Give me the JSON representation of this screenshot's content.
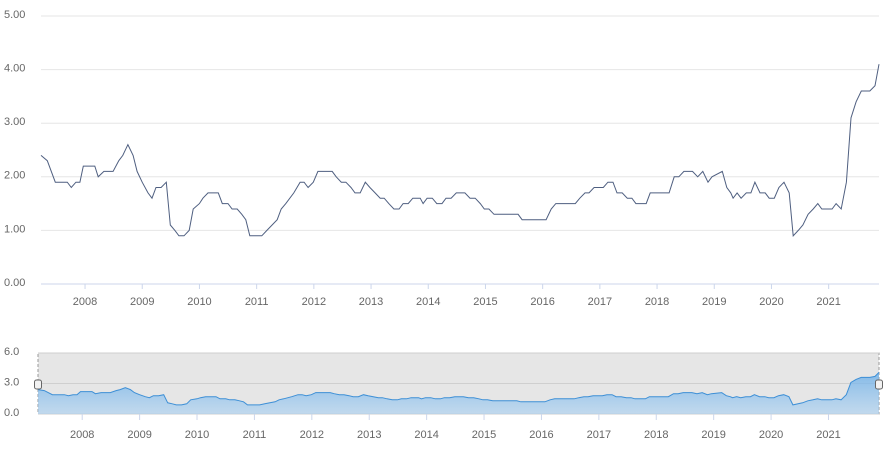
{
  "chart_data": {
    "type": "line",
    "color": "#4f5f80",
    "xlim": [
      2007.23,
      2021.88
    ],
    "xticks": [
      2008,
      2009,
      2010,
      2011,
      2012,
      2013,
      2014,
      2015,
      2016,
      2017,
      2018,
      2019,
      2020,
      2021
    ],
    "ylim": [
      0,
      5
    ],
    "yticks": [
      {
        "value": 0,
        "label": "0.00"
      },
      {
        "value": 1,
        "label": "1.00"
      },
      {
        "value": 2,
        "label": "2.00"
      },
      {
        "value": 3,
        "label": "3.00"
      },
      {
        "value": 4,
        "label": "4.00"
      },
      {
        "value": 5,
        "label": "5.00"
      }
    ],
    "grid": true,
    "x": [
      2007.23,
      2007.34,
      2007.48,
      2007.69,
      2007.76,
      2007.84,
      2007.91,
      2007.97,
      2008.17,
      2008.23,
      2008.33,
      2008.49,
      2008.59,
      2008.66,
      2008.75,
      2008.84,
      2008.91,
      2009.0,
      2009.1,
      2009.17,
      2009.24,
      2009.33,
      2009.42,
      2009.49,
      2009.57,
      2009.64,
      2009.73,
      2009.82,
      2009.89,
      2010.0,
      2010.06,
      2010.15,
      2010.33,
      2010.4,
      2010.5,
      2010.57,
      2010.66,
      2010.74,
      2010.81,
      2010.88,
      2011.09,
      2011.18,
      2011.27,
      2011.36,
      2011.43,
      2011.51,
      2011.65,
      2011.76,
      2011.83,
      2011.9,
      2011.99,
      2012.07,
      2012.32,
      2012.39,
      2012.48,
      2012.56,
      2012.65,
      2012.72,
      2012.81,
      2012.9,
      2012.98,
      2013.07,
      2013.16,
      2013.23,
      2013.31,
      2013.4,
      2013.49,
      2013.56,
      2013.65,
      2013.73,
      2013.86,
      2013.91,
      2013.98,
      2014.07,
      2014.15,
      2014.24,
      2014.31,
      2014.4,
      2014.49,
      2014.64,
      2014.73,
      2014.82,
      2014.91,
      2014.98,
      2015.06,
      2015.15,
      2015.57,
      2015.64,
      2016.06,
      2016.15,
      2016.23,
      2016.57,
      2016.65,
      2016.74,
      2016.81,
      2016.9,
      2017.06,
      2017.14,
      2017.23,
      2017.3,
      2017.39,
      2017.48,
      2017.56,
      2017.63,
      2017.81,
      2017.88,
      2018.21,
      2018.3,
      2018.38,
      2018.47,
      2018.62,
      2018.71,
      2018.8,
      2018.89,
      2018.96,
      2019.14,
      2019.22,
      2019.29,
      2019.33,
      2019.4,
      2019.47,
      2019.56,
      2019.64,
      2019.71,
      2019.8,
      2019.89,
      2019.96,
      2020.05,
      2020.13,
      2020.22,
      2020.31,
      2020.38,
      2020.47,
      2020.55,
      2020.64,
      2020.73,
      2020.81,
      2020.88,
      2021.06,
      2021.13,
      2021.22,
      2021.31,
      2021.39,
      2021.48,
      2021.57,
      2021.72,
      2021.81,
      2021.88
    ],
    "values": [
      2.4,
      2.3,
      1.9,
      1.9,
      1.8,
      1.9,
      1.9,
      2.2,
      2.2,
      2.0,
      2.1,
      2.1,
      2.3,
      2.4,
      2.6,
      2.4,
      2.1,
      1.9,
      1.7,
      1.6,
      1.8,
      1.8,
      1.9,
      1.1,
      1.0,
      0.9,
      0.9,
      1.0,
      1.4,
      1.5,
      1.6,
      1.7,
      1.7,
      1.5,
      1.5,
      1.4,
      1.4,
      1.3,
      1.2,
      0.9,
      0.9,
      1.0,
      1.1,
      1.2,
      1.4,
      1.5,
      1.7,
      1.9,
      1.9,
      1.8,
      1.9,
      2.1,
      2.1,
      2.0,
      1.9,
      1.9,
      1.8,
      1.7,
      1.7,
      1.9,
      1.8,
      1.7,
      1.6,
      1.6,
      1.5,
      1.4,
      1.4,
      1.5,
      1.5,
      1.6,
      1.6,
      1.5,
      1.6,
      1.6,
      1.5,
      1.5,
      1.6,
      1.6,
      1.7,
      1.7,
      1.6,
      1.6,
      1.5,
      1.4,
      1.4,
      1.3,
      1.3,
      1.2,
      1.2,
      1.4,
      1.5,
      1.5,
      1.6,
      1.7,
      1.7,
      1.8,
      1.8,
      1.9,
      1.9,
      1.7,
      1.7,
      1.6,
      1.6,
      1.5,
      1.5,
      1.7,
      1.7,
      2.0,
      2.0,
      2.1,
      2.1,
      2.0,
      2.1,
      1.9,
      2.0,
      2.1,
      1.8,
      1.7,
      1.6,
      1.7,
      1.6,
      1.7,
      1.7,
      1.9,
      1.7,
      1.7,
      1.6,
      1.6,
      1.8,
      1.9,
      1.7,
      0.9,
      1.0,
      1.1,
      1.3,
      1.4,
      1.5,
      1.4,
      1.4,
      1.5,
      1.4,
      1.9,
      3.1,
      3.4,
      3.6,
      3.6,
      3.7,
      4.1
    ],
    "navigator": {
      "ylim": [
        0,
        6
      ],
      "yticks": [
        {
          "value": 0,
          "label": "0.0"
        },
        {
          "value": 3,
          "label": "3.0"
        },
        {
          "value": 6,
          "label": "6.0"
        }
      ]
    }
  }
}
